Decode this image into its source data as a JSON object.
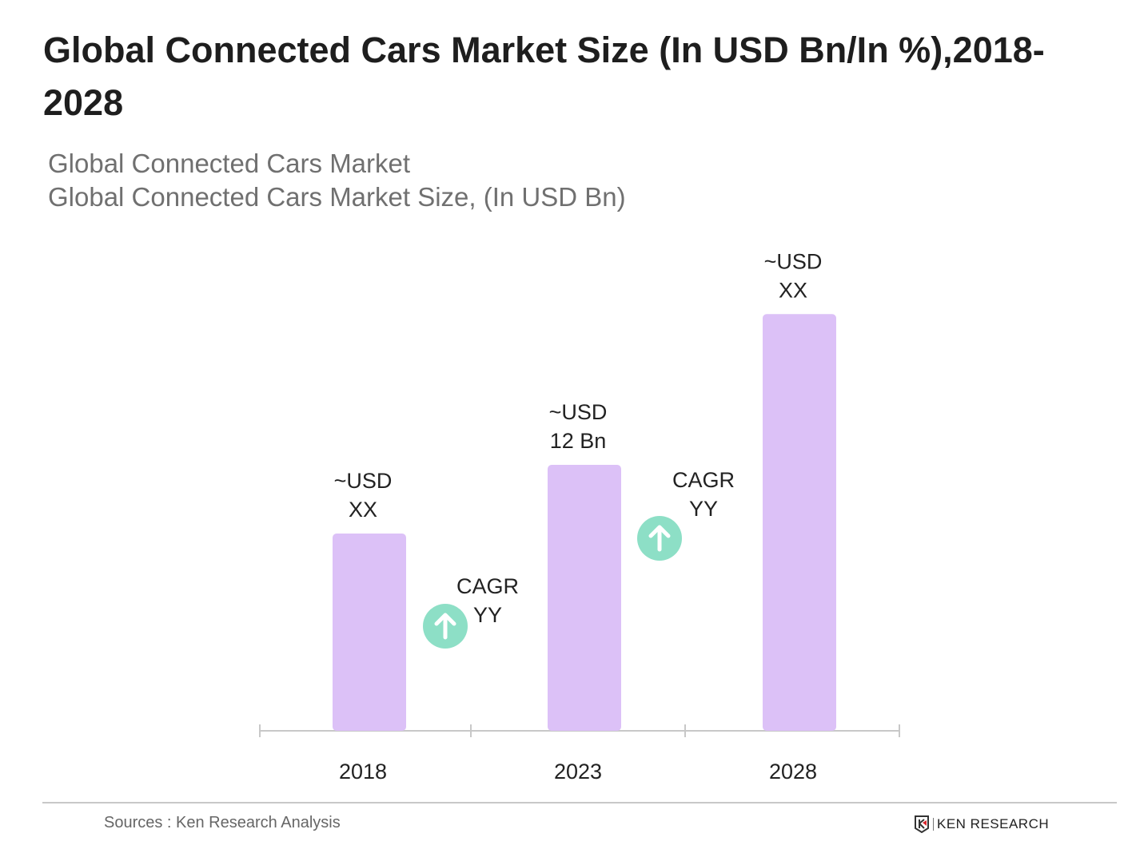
{
  "chart_data": {
    "type": "bar",
    "title": "Global Connected Cars Market Size (In USD Bn/In %),2018-2028",
    "subtitle_lines": [
      "Global Connected Cars Market",
      "Global Connected Cars Market Size, (In USD Bn)"
    ],
    "categories": [
      "2018",
      "2023",
      "2028"
    ],
    "values": [
      8.9,
      12,
      18.8
    ],
    "data_labels": [
      [
        "~USD",
        "XX"
      ],
      [
        "~USD",
        "12 Bn"
      ],
      [
        "~USD",
        "XX"
      ]
    ],
    "annotations": [
      {
        "lines": [
          "CAGR",
          "YY"
        ],
        "icon": "arrow-up-circle-icon",
        "between": [
          "2018",
          "2023"
        ]
      },
      {
        "lines": [
          "CAGR",
          "YY"
        ],
        "icon": "arrow-up-circle-icon",
        "between": [
          "2023",
          "2028"
        ]
      }
    ],
    "ylim": [
      0,
      20
    ],
    "grid": false,
    "colors": {
      "bar": "#dcc1f7",
      "icon": "#8ddfc6",
      "axis": "#c8c8c8"
    }
  },
  "footer": {
    "source": "Sources : Ken Research Analysis",
    "logo_text": "KEN RESEARCH"
  }
}
